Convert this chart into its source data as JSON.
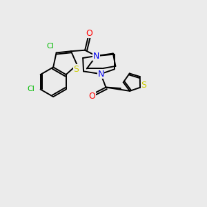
{
  "background_color": "#ebebeb",
  "bond_color": "#000000",
  "atom_colors": {
    "Cl": "#00bb00",
    "S": "#cccc00",
    "N": "#0000ee",
    "O": "#ff0000",
    "C": "#000000"
  },
  "figsize": [
    3.0,
    3.0
  ],
  "dpi": 100
}
